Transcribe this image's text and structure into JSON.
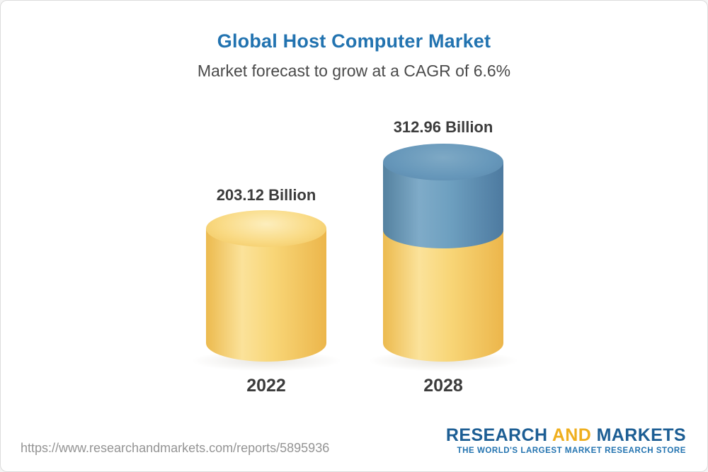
{
  "header": {
    "title": "Global Host Computer Market",
    "subtitle": "Market forecast to grow at a CAGR of 6.6%"
  },
  "chart_data": {
    "type": "bar",
    "style": "3d-cylinder",
    "title": "Global Host Computer Market",
    "subtitle": "Market forecast to grow at a CAGR of 6.6%",
    "cagr": "6.6%",
    "categories": [
      "2022",
      "2028"
    ],
    "values": [
      203.12,
      312.96
    ],
    "value_labels": [
      "203.12 Billion",
      "312.96 Billion"
    ],
    "bar_colors": {
      "base_segment": "#f6cc63",
      "growth_segment": "#5d8fb5"
    },
    "legend": false,
    "gridlines": false,
    "axes_shown": false
  },
  "footer": {
    "url": "https://www.researchandmarkets.com/reports/5895936",
    "logo": {
      "research": "RESEARCH",
      "and": "AND",
      "markets": "MARKETS",
      "tagline": "THE WORLD'S LARGEST MARKET RESEARCH STORE"
    }
  },
  "colors": {
    "title_blue": "#2273b0",
    "text_dark": "#3c3c3c",
    "url_gray": "#949494",
    "logo_blue": "#1d5e94",
    "logo_gold": "#efaf1e"
  }
}
